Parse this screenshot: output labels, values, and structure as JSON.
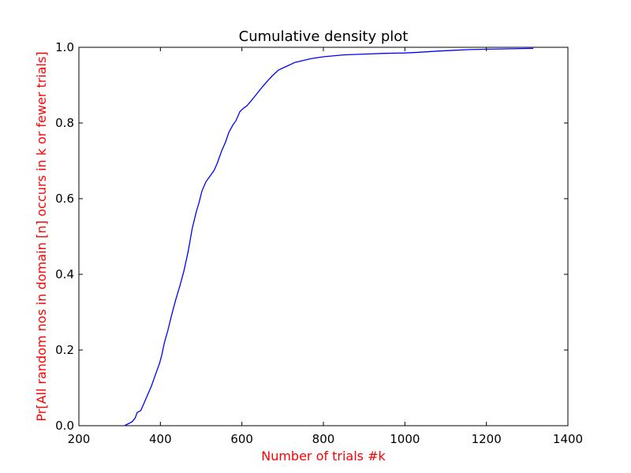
{
  "chart_data": {
    "type": "line",
    "title": "Cumulative density plot",
    "xlabel": "Number of trials #k",
    "ylabel": "Pr[All random nos in domain [n] occurs in k or fewer trials]",
    "xlim": [
      200,
      1400
    ],
    "ylim": [
      0.0,
      1.0
    ],
    "x_ticks": [
      200,
      400,
      600,
      800,
      1000,
      1200,
      1400
    ],
    "x_tick_labels": [
      "200",
      "400",
      "600",
      "800",
      "1000",
      "1200",
      "1400"
    ],
    "y_ticks": [
      0.0,
      0.2,
      0.4,
      0.6,
      0.8,
      1.0
    ],
    "y_tick_labels": [
      "0.0",
      "0.2",
      "0.4",
      "0.6",
      "0.8",
      "1.0"
    ],
    "grid": false,
    "legend": "none",
    "colors": {
      "line": "#0000ff",
      "axis_label": "#ff0000",
      "frame": "#000000"
    },
    "series": [
      {
        "x": [
          312,
          330,
          338,
          343,
          352,
          360,
          368,
          378,
          388,
          398,
          403,
          410,
          418,
          427,
          437,
          448,
          458,
          468,
          478,
          488,
          495,
          502,
          512,
          522,
          532,
          540,
          550,
          560,
          568,
          578,
          585,
          595,
          605,
          612,
          620,
          635,
          650,
          662,
          675,
          690,
          710,
          730,
          750,
          770,
          800,
          850,
          900,
          950,
          1000,
          1040,
          1080,
          1120,
          1160,
          1200,
          1260,
          1315
        ],
        "y": [
          0.0,
          0.01,
          0.02,
          0.035,
          0.04,
          0.06,
          0.08,
          0.105,
          0.135,
          0.165,
          0.185,
          0.22,
          0.25,
          0.29,
          0.33,
          0.37,
          0.41,
          0.46,
          0.52,
          0.565,
          0.59,
          0.62,
          0.645,
          0.66,
          0.675,
          0.695,
          0.725,
          0.75,
          0.775,
          0.795,
          0.805,
          0.83,
          0.84,
          0.845,
          0.855,
          0.875,
          0.895,
          0.91,
          0.925,
          0.94,
          0.95,
          0.96,
          0.965,
          0.97,
          0.975,
          0.98,
          0.982,
          0.984,
          0.985,
          0.987,
          0.99,
          0.992,
          0.994,
          0.995,
          0.996,
          0.997
        ]
      }
    ]
  }
}
